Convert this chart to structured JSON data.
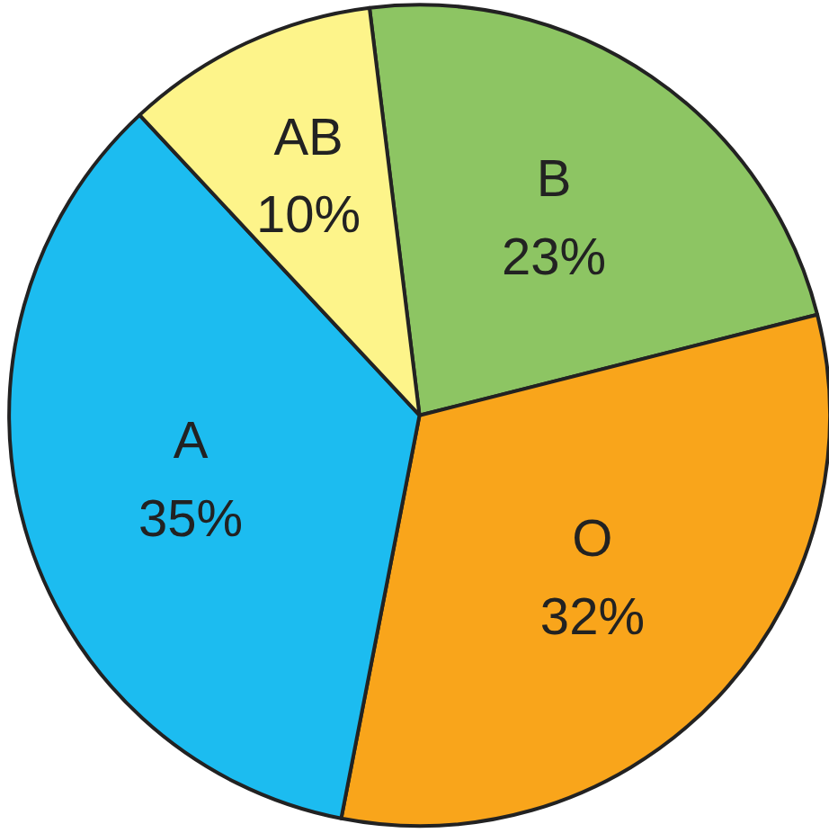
{
  "chart_data": {
    "type": "pie",
    "categories": [
      "B",
      "O",
      "A",
      "AB"
    ],
    "values": [
      23,
      32,
      35,
      10
    ],
    "colors": [
      "#8dc563",
      "#f9a51b",
      "#1cbcf0",
      "#fdf48a"
    ],
    "value_labels": [
      "23%",
      "32%",
      "35%",
      "10%"
    ],
    "legend": false
  }
}
